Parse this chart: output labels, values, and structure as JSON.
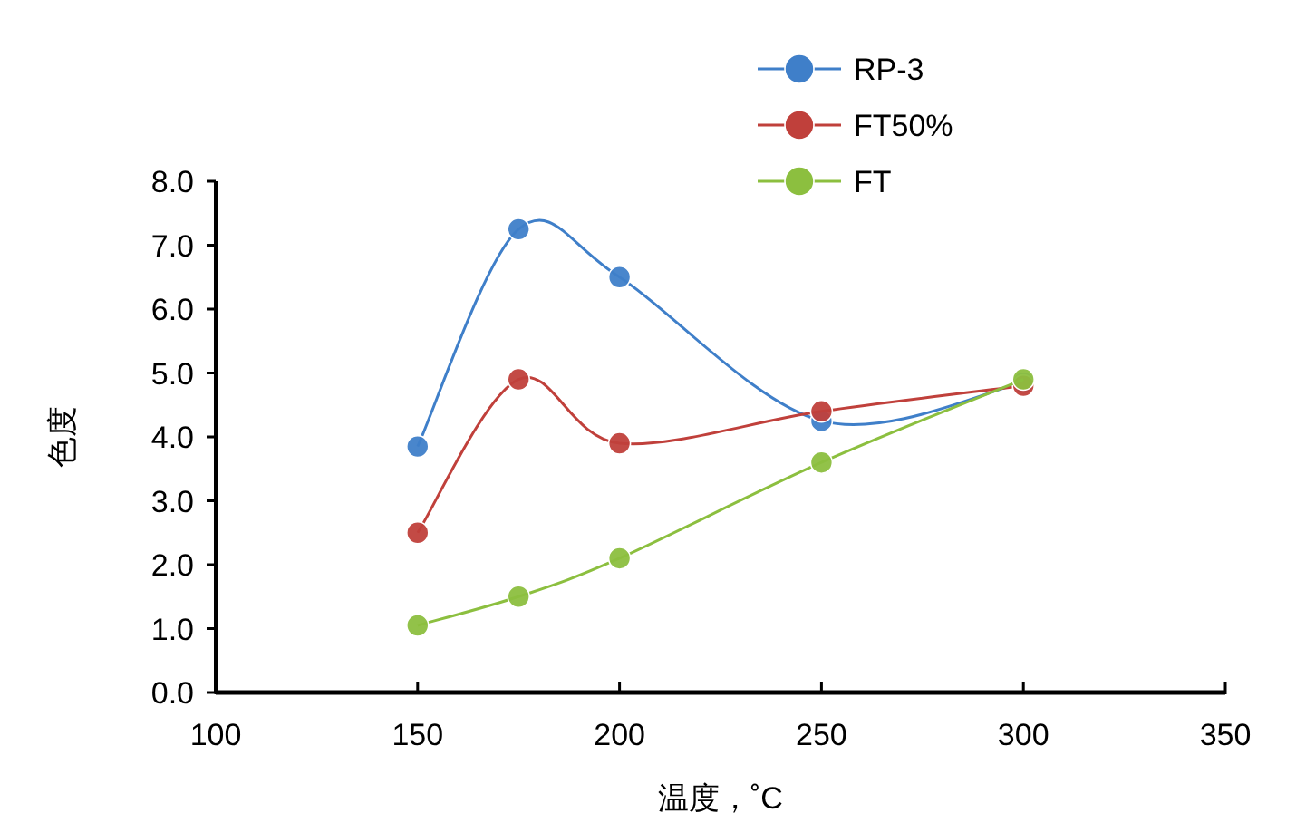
{
  "chart_data": {
    "type": "line",
    "xlabel": "温度，˚C",
    "ylabel": "色度",
    "x": [
      150,
      175,
      200,
      250,
      300
    ],
    "series": [
      {
        "name": "RP-3",
        "color": "#3f7fc9",
        "values": [
          3.85,
          7.25,
          6.5,
          4.25,
          4.85
        ]
      },
      {
        "name": "FT50%",
        "color": "#c0403b",
        "values": [
          2.5,
          4.9,
          3.9,
          4.4,
          4.8
        ]
      },
      {
        "name": "FT",
        "color": "#8cbf3f",
        "values": [
          1.05,
          1.5,
          2.1,
          3.6,
          4.9
        ]
      }
    ],
    "xlim": [
      100,
      350
    ],
    "xticks": [
      100,
      150,
      200,
      250,
      300,
      350
    ],
    "ylim": [
      0,
      8
    ],
    "yticks": [
      {
        "value": 0,
        "label": "0.0"
      },
      {
        "value": 1,
        "label": "1.0"
      },
      {
        "value": 2,
        "label": "2.0"
      },
      {
        "value": 3,
        "label": "3.0"
      },
      {
        "value": 4,
        "label": "4.0"
      },
      {
        "value": 5,
        "label": "5.0"
      },
      {
        "value": 6,
        "label": "6.0"
      },
      {
        "value": 7,
        "label": "7.0"
      },
      {
        "value": 8,
        "label": "8.0"
      }
    ],
    "marker": "circle",
    "line_style": "solid",
    "legend": "top right",
    "grid": false
  }
}
